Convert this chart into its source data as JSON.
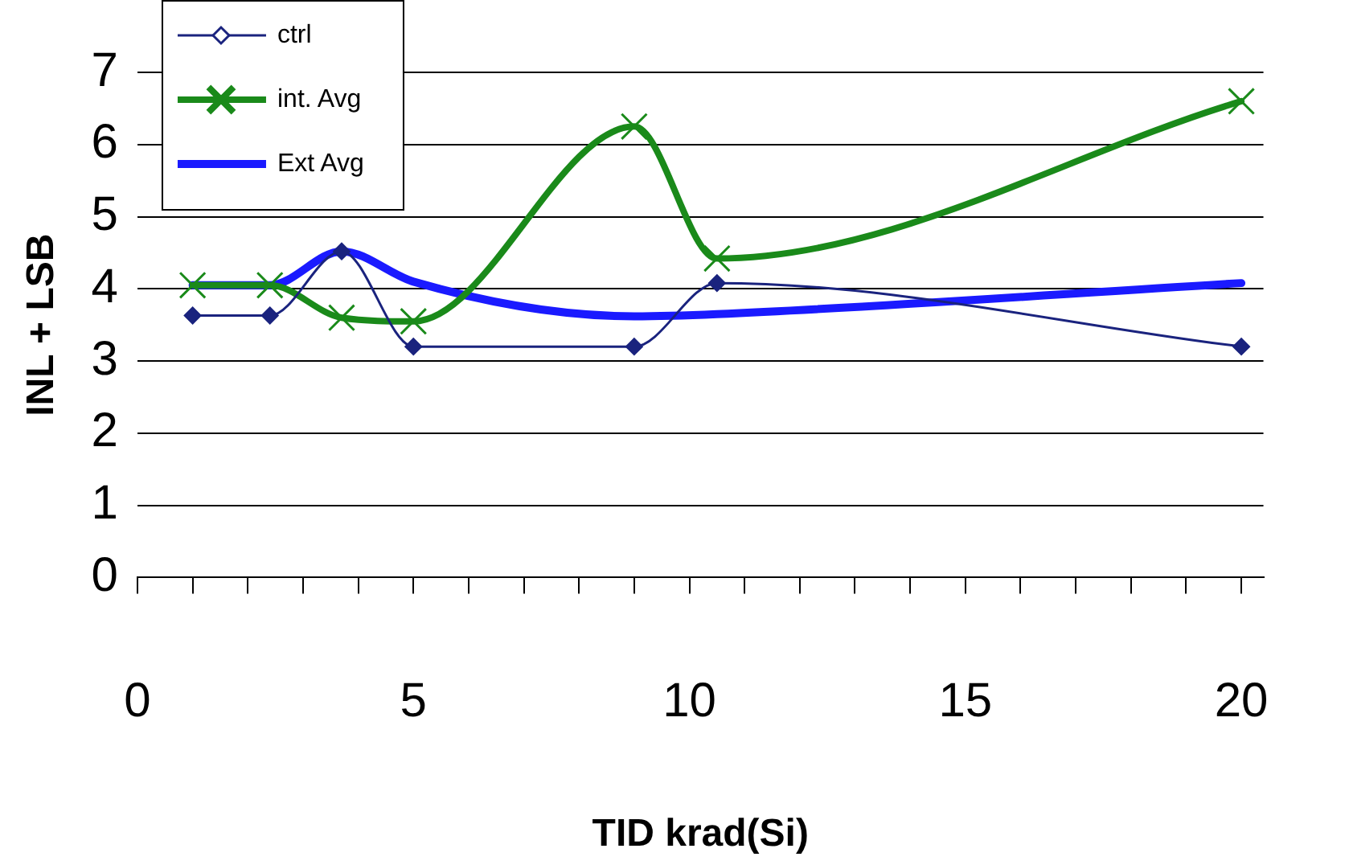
{
  "chart_data": {
    "type": "line",
    "xlabel": "TID krad(Si)",
    "ylabel": "INL + LSB",
    "x": [
      1,
      2.4,
      3.7,
      5,
      9,
      10.5,
      20
    ],
    "xlim": [
      0,
      20.4
    ],
    "xticks": [
      0,
      {
        "value": 1,
        "label": null
      },
      {
        "value": 2,
        "label": null
      },
      {
        "value": 3,
        "label": null
      },
      {
        "value": 4,
        "label": null
      },
      5,
      {
        "value": 6,
        "label": null
      },
      {
        "value": 7,
        "label": null
      },
      {
        "value": 8,
        "label": null
      },
      {
        "value": 9,
        "label": null
      },
      10,
      {
        "value": 11,
        "label": null
      },
      {
        "value": 12,
        "label": null
      },
      {
        "value": 13,
        "label": null
      },
      {
        "value": 14,
        "label": null
      },
      15,
      {
        "value": 16,
        "label": null
      },
      {
        "value": 17,
        "label": null
      },
      {
        "value": 18,
        "label": null
      },
      {
        "value": 19,
        "label": null
      },
      20
    ],
    "ylim": [
      0,
      7
    ],
    "yticks": [
      0,
      1,
      2,
      3,
      4,
      5,
      6,
      7
    ],
    "grid": "y",
    "legend": "top left",
    "series": [
      {
        "name": "ctrl",
        "color": "#1a237e",
        "marker": "diamond",
        "values": [
          3.63,
          3.63,
          4.52,
          3.2,
          3.2,
          4.08,
          3.2
        ]
      },
      {
        "name": "int. Avg",
        "color": "#1a8a1a",
        "marker": "cross",
        "values": [
          4.05,
          4.05,
          3.6,
          3.55,
          6.25,
          4.42,
          6.6
        ]
      },
      {
        "name": "Ext Avg",
        "color": "#1a1aff",
        "marker": "none",
        "values": [
          4.05,
          4.05,
          4.52,
          4.1,
          3.62,
          3.65,
          4.08
        ]
      }
    ]
  }
}
